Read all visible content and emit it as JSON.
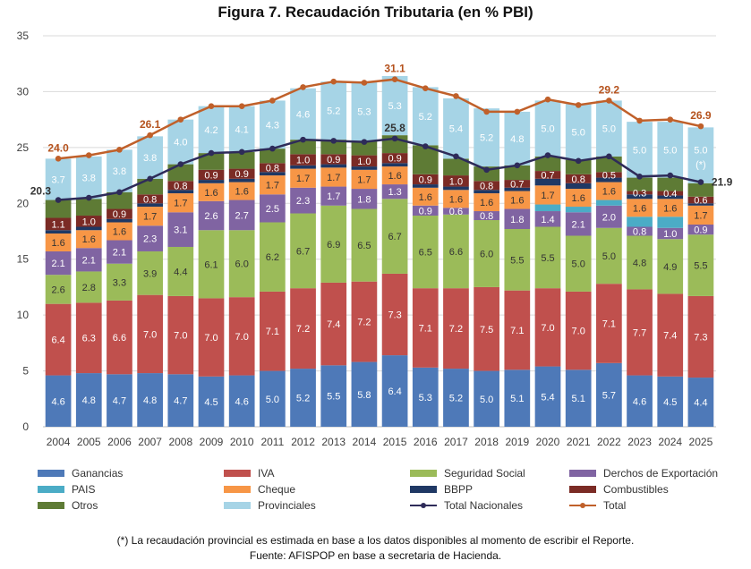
{
  "title": "Figura 7.  Recaudación Tributaria (en % PBI)",
  "footnote": "(*) La recaudación provincial es estimada en base a los datos disponibles al momento de escribir el Reporte.",
  "source": "Fuente: AFISPOP en base a secretaria de Hacienda.",
  "legend": [
    {
      "key": "ganancias",
      "label": "Ganancias"
    },
    {
      "key": "iva",
      "label": "IVA"
    },
    {
      "key": "seguridad",
      "label": "Seguridad Social"
    },
    {
      "key": "derechos",
      "label": "Derchos de Exportación"
    },
    {
      "key": "pais",
      "label": "PAIS"
    },
    {
      "key": "cheque",
      "label": "Cheque"
    },
    {
      "key": "bbpp",
      "label": "BBPP"
    },
    {
      "key": "combustibles",
      "label": "Combustibles"
    },
    {
      "key": "otros",
      "label": "Otros"
    },
    {
      "key": "provinciales",
      "label": "Provinciales"
    },
    {
      "key": "total_nacionales",
      "label": "Total Nacionales"
    },
    {
      "key": "total",
      "label": "Total"
    }
  ],
  "chart_data": {
    "type": "bar",
    "stacked": true,
    "title": "Figura 7.  Recaudación Tributaria (en % PBI)",
    "xlabel": "",
    "ylabel": "",
    "ylim": [
      0,
      35
    ],
    "yticks": [
      0,
      5,
      10,
      15,
      20,
      25,
      30,
      35
    ],
    "categories": [
      "2004",
      "2005",
      "2006",
      "2007",
      "2008",
      "2009",
      "2010",
      "2011",
      "2012",
      "2013",
      "2014",
      "2015",
      "2016",
      "2017",
      "2018",
      "2019",
      "2020",
      "2021",
      "2022",
      "2023",
      "2024",
      "2025"
    ],
    "colors": {
      "ganancias": "#4e79b8",
      "iva": "#c0504d",
      "seguridad": "#9bbb59",
      "derechos": "#8064a2",
      "pais": "#4bacc6",
      "cheque": "#f79646",
      "bbpp": "#1f3864",
      "combustibles": "#7b2b25",
      "otros": "#5e7b35",
      "provinciales": "#a6d4e6",
      "total_nacionales": "#2e2b59",
      "total": "#c0602a"
    },
    "series": [
      {
        "key": "ganancias",
        "name": "Ganancias",
        "values": [
          4.6,
          4.8,
          4.7,
          4.8,
          4.7,
          4.5,
          4.6,
          5.0,
          5.2,
          5.5,
          5.8,
          6.4,
          5.3,
          5.2,
          5.0,
          5.1,
          5.4,
          5.1,
          5.7,
          4.6,
          4.5,
          4.4
        ]
      },
      {
        "key": "iva",
        "name": "IVA",
        "values": [
          6.4,
          6.3,
          6.6,
          7.0,
          7.0,
          7.0,
          7.0,
          7.1,
          7.2,
          7.4,
          7.2,
          7.3,
          7.1,
          7.2,
          7.5,
          7.1,
          7.0,
          7.0,
          7.1,
          7.7,
          7.4,
          7.3
        ]
      },
      {
        "key": "seguridad",
        "name": "Seguridad Social",
        "values": [
          2.6,
          2.8,
          3.3,
          3.9,
          4.4,
          6.1,
          6.0,
          6.2,
          6.7,
          6.9,
          6.5,
          6.7,
          6.5,
          6.6,
          6.0,
          5.5,
          5.5,
          5.0,
          5.0,
          4.8,
          4.9,
          5.5
        ]
      },
      {
        "key": "derechos",
        "name": "Derchos de Exportación",
        "values": [
          2.1,
          2.1,
          2.1,
          2.3,
          3.1,
          2.6,
          2.7,
          2.5,
          2.3,
          1.7,
          1.8,
          1.3,
          0.9,
          0.6,
          0.8,
          1.8,
          1.4,
          2.1,
          2.0,
          0.8,
          1.0,
          0.9
        ]
      },
      {
        "key": "pais",
        "name": "PAIS",
        "values": [
          0,
          0,
          0,
          0,
          0,
          0,
          0,
          0,
          0,
          0,
          0,
          0,
          0,
          0,
          0,
          0,
          0.6,
          0.5,
          0.5,
          0.9,
          1.0,
          0
        ]
      },
      {
        "key": "cheque",
        "name": "Cheque",
        "values": [
          1.6,
          1.6,
          1.6,
          1.7,
          1.7,
          1.6,
          1.6,
          1.7,
          1.7,
          1.7,
          1.7,
          1.6,
          1.6,
          1.6,
          1.6,
          1.6,
          1.7,
          1.6,
          1.6,
          1.6,
          1.6,
          1.7
        ]
      },
      {
        "key": "bbpp",
        "name": "BBPP",
        "values": [
          0.3,
          0.3,
          0.3,
          0.3,
          0.3,
          0.3,
          0.3,
          0.3,
          0.3,
          0.3,
          0.3,
          0.3,
          0.3,
          0.3,
          0.3,
          0.3,
          0.6,
          0.5,
          0.4,
          0.4,
          0.3,
          0.2
        ]
      },
      {
        "key": "combustibles",
        "name": "Combustibles",
        "values": [
          1.1,
          1.0,
          0.9,
          0.8,
          0.8,
          0.9,
          0.9,
          0.8,
          1.0,
          0.9,
          1.0,
          0.9,
          0.9,
          1.0,
          0.8,
          0.7,
          0.7,
          0.8,
          0.5,
          0.3,
          0.4,
          0.6
        ]
      },
      {
        "key": "otros",
        "name": "Otros",
        "values": [
          1.6,
          1.5,
          1.5,
          1.4,
          1.5,
          1.5,
          1.5,
          1.3,
          1.3,
          1.3,
          1.3,
          1.6,
          2.6,
          1.5,
          1.3,
          1.3,
          1.3,
          1.3,
          1.4,
          1.2,
          1.2,
          1.2
        ]
      },
      {
        "key": "provinciales",
        "name": "Provinciales",
        "values": [
          3.7,
          3.8,
          3.8,
          3.8,
          4.0,
          4.2,
          4.1,
          4.3,
          4.6,
          5.2,
          5.3,
          5.3,
          5.2,
          5.4,
          5.2,
          4.8,
          5.0,
          5.0,
          5.0,
          5.0,
          5.0,
          5.0
        ]
      }
    ],
    "segment_labels": {
      "ganancias": [
        "4.6",
        "4.8",
        "4.7",
        "4.8",
        "4.7",
        "4.5",
        "4.6",
        "5.0",
        "5.2",
        "5.5",
        "5.8",
        "6.4",
        "5.3",
        "5.2",
        "5.0",
        "5.1",
        "5.4",
        "5.1",
        "5.7",
        "4.6",
        "4.5",
        "4.4"
      ],
      "iva": [
        "6.4",
        "6.3",
        "6.6",
        "7.0",
        "7.0",
        "7.0",
        "7.0",
        "7.1",
        "7.2",
        "7.4",
        "7.2",
        "7.3",
        "7.1",
        "7.2",
        "7.5",
        "7.1",
        "7.0",
        "7.0",
        "7.1",
        "7.7",
        "7.4",
        "7.3"
      ],
      "seguridad": [
        "2.6",
        "2.8",
        "3.3",
        "3.9",
        "4.4",
        "6.1",
        "6.0",
        "6.2",
        "6.7",
        "6.9",
        "6.5",
        "6.7",
        "6.5",
        "6.6",
        "6.0",
        "5.5",
        "5.5",
        "5.0",
        "5.0",
        "4.8",
        "4.9",
        "5.5"
      ],
      "derechos": [
        "2.1",
        "2.1",
        "2.1",
        "2.3",
        "3.1",
        "2.6",
        "2.7",
        "2.5",
        "2.3",
        "1.7",
        "1.8",
        "1.3",
        "0.9",
        "0.6",
        "0.8",
        "1.8",
        "1.4",
        "2.1",
        "2.0",
        "0.8",
        "1.0",
        "0.9"
      ],
      "cheque": [
        "1.6",
        "1.6",
        "1.6",
        "1.7",
        "1.7",
        "1.6",
        "1.6",
        "1.7",
        "1.7",
        "1.7",
        "1.7",
        "1.6",
        "1.6",
        "1.6",
        "1.6",
        "1.6",
        "1.7",
        "1.6",
        "1.6",
        "1.6",
        "1.6",
        "1.7"
      ],
      "combustibles": [
        "1.1",
        "1.0",
        "0.9",
        "0.8",
        "0.8",
        "0.9",
        "0.9",
        "0.8",
        "1.0",
        "0.9",
        "1.0",
        "0.9",
        "0.9",
        "1.0",
        "0.8",
        "0.7",
        "0.7",
        "0.8",
        "0.5",
        "0.3",
        "0.4",
        "0.6"
      ],
      "provinciales": [
        "3.7",
        "3.8",
        "3.8",
        "3.8",
        "4.0",
        "4.2",
        "4.1",
        "4.3",
        "4.6",
        "5.2",
        "5.3",
        "5.3",
        "5.2",
        "5.4",
        "5.2",
        "4.8",
        "5.0",
        "5.0",
        "5.0",
        "5.0",
        "5.0",
        "5.0 (*)"
      ]
    },
    "lines": [
      {
        "key": "total_nacionales",
        "name": "Total Nacionales",
        "values": [
          20.3,
          20.5,
          21.0,
          22.2,
          23.5,
          24.5,
          24.6,
          24.9,
          25.7,
          25.6,
          25.5,
          25.8,
          25.1,
          24.2,
          23.0,
          23.4,
          24.3,
          23.8,
          24.2,
          22.4,
          22.5,
          21.9
        ]
      },
      {
        "key": "total",
        "name": "Total",
        "values": [
          24.0,
          24.3,
          24.8,
          26.1,
          27.5,
          28.7,
          28.7,
          29.2,
          30.4,
          30.9,
          30.8,
          31.1,
          30.3,
          29.6,
          28.2,
          28.2,
          29.3,
          28.8,
          29.2,
          27.4,
          27.5,
          26.9
        ]
      }
    ],
    "point_labels": [
      {
        "series": "total",
        "index": 0,
        "text": "24.0"
      },
      {
        "series": "total",
        "index": 3,
        "text": "26.1"
      },
      {
        "series": "total",
        "index": 11,
        "text": "31.1"
      },
      {
        "series": "total",
        "index": 18,
        "text": "29.2"
      },
      {
        "series": "total",
        "index": 21,
        "text": "26.9"
      },
      {
        "series": "total_nacionales",
        "index": 0,
        "text": "20.3"
      },
      {
        "series": "total_nacionales",
        "index": 11,
        "text": "25.8"
      },
      {
        "series": "total_nacionales",
        "index": 21,
        "text": "21.9"
      }
    ]
  }
}
